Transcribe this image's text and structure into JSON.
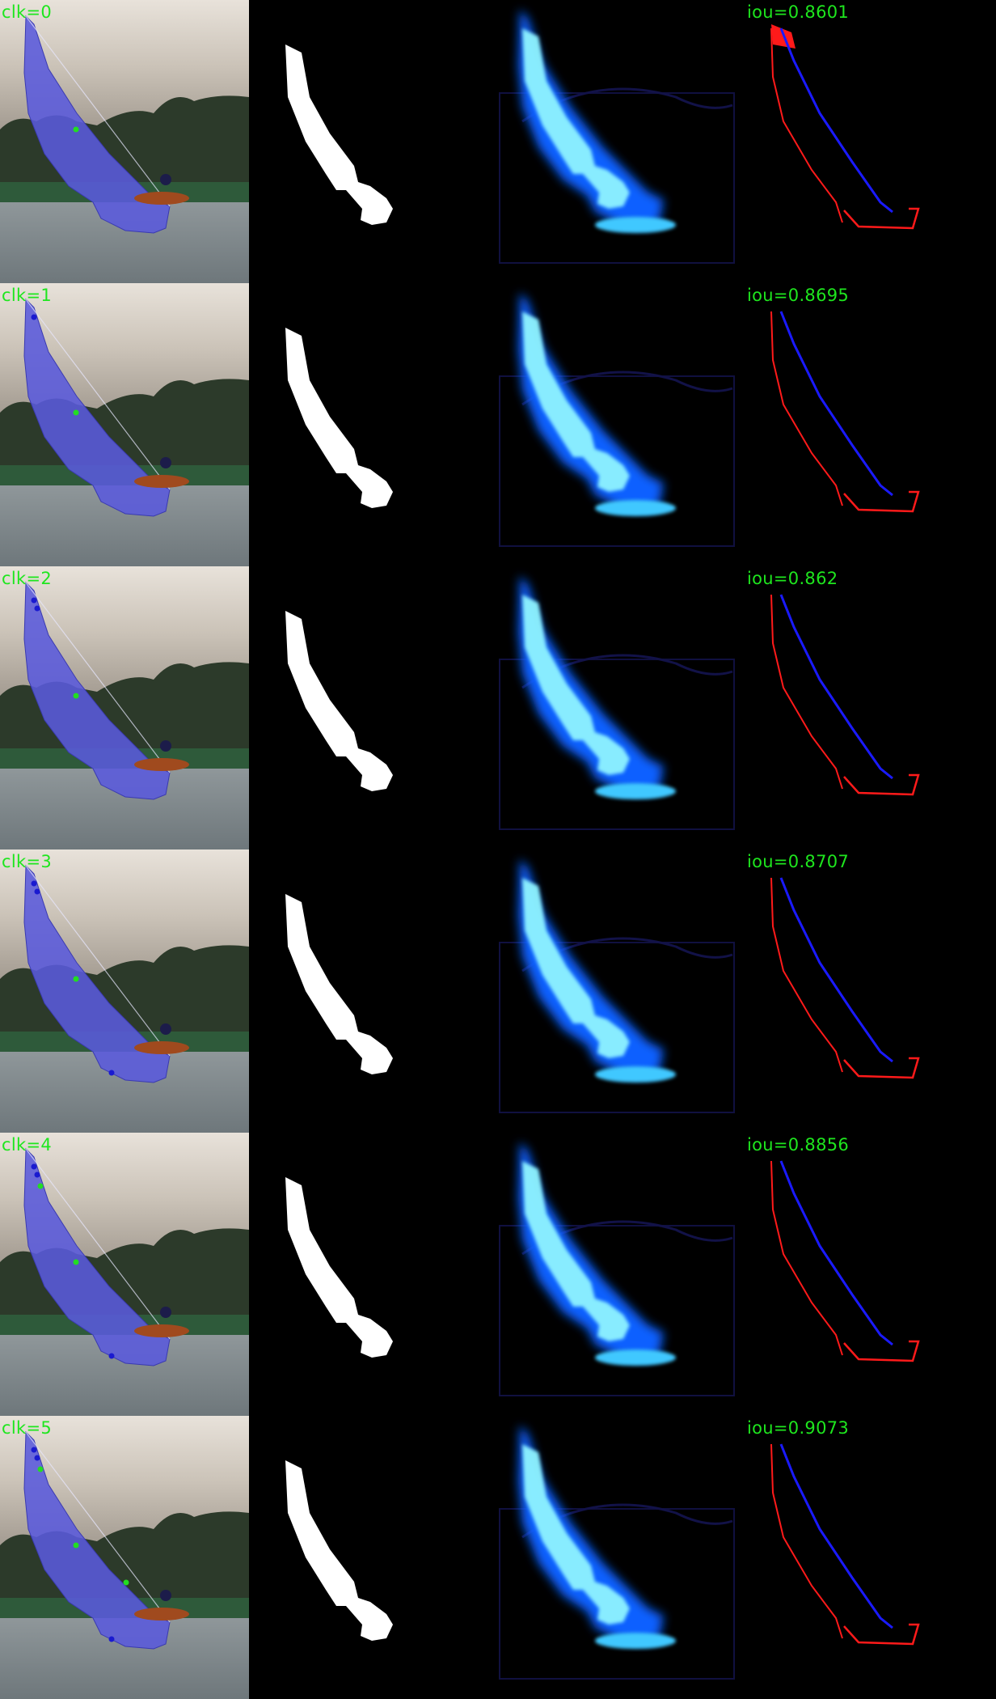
{
  "colors": {
    "label_text": "#1ee61e",
    "overlay": "#5a5adc",
    "mask": "#ffffff",
    "prob_glow": "#20a8ff",
    "error_fn": "#ff1a1a",
    "error_fp": "#1a1aff",
    "positive_click": "#22dd22",
    "negative_click": "#1a1ad0"
  },
  "rows": [
    {
      "clk_label": "clk=0",
      "iou_label": "iou=0.8601"
    },
    {
      "clk_label": "clk=1",
      "iou_label": "iou=0.8695"
    },
    {
      "clk_label": "clk=2",
      "iou_label": "iou=0.862"
    },
    {
      "clk_label": "clk=3",
      "iou_label": "iou=0.8707"
    },
    {
      "clk_label": "clk=4",
      "iou_label": "iou=0.8856"
    },
    {
      "clk_label": "clk=5",
      "iou_label": "iou=0.9073"
    }
  ]
}
